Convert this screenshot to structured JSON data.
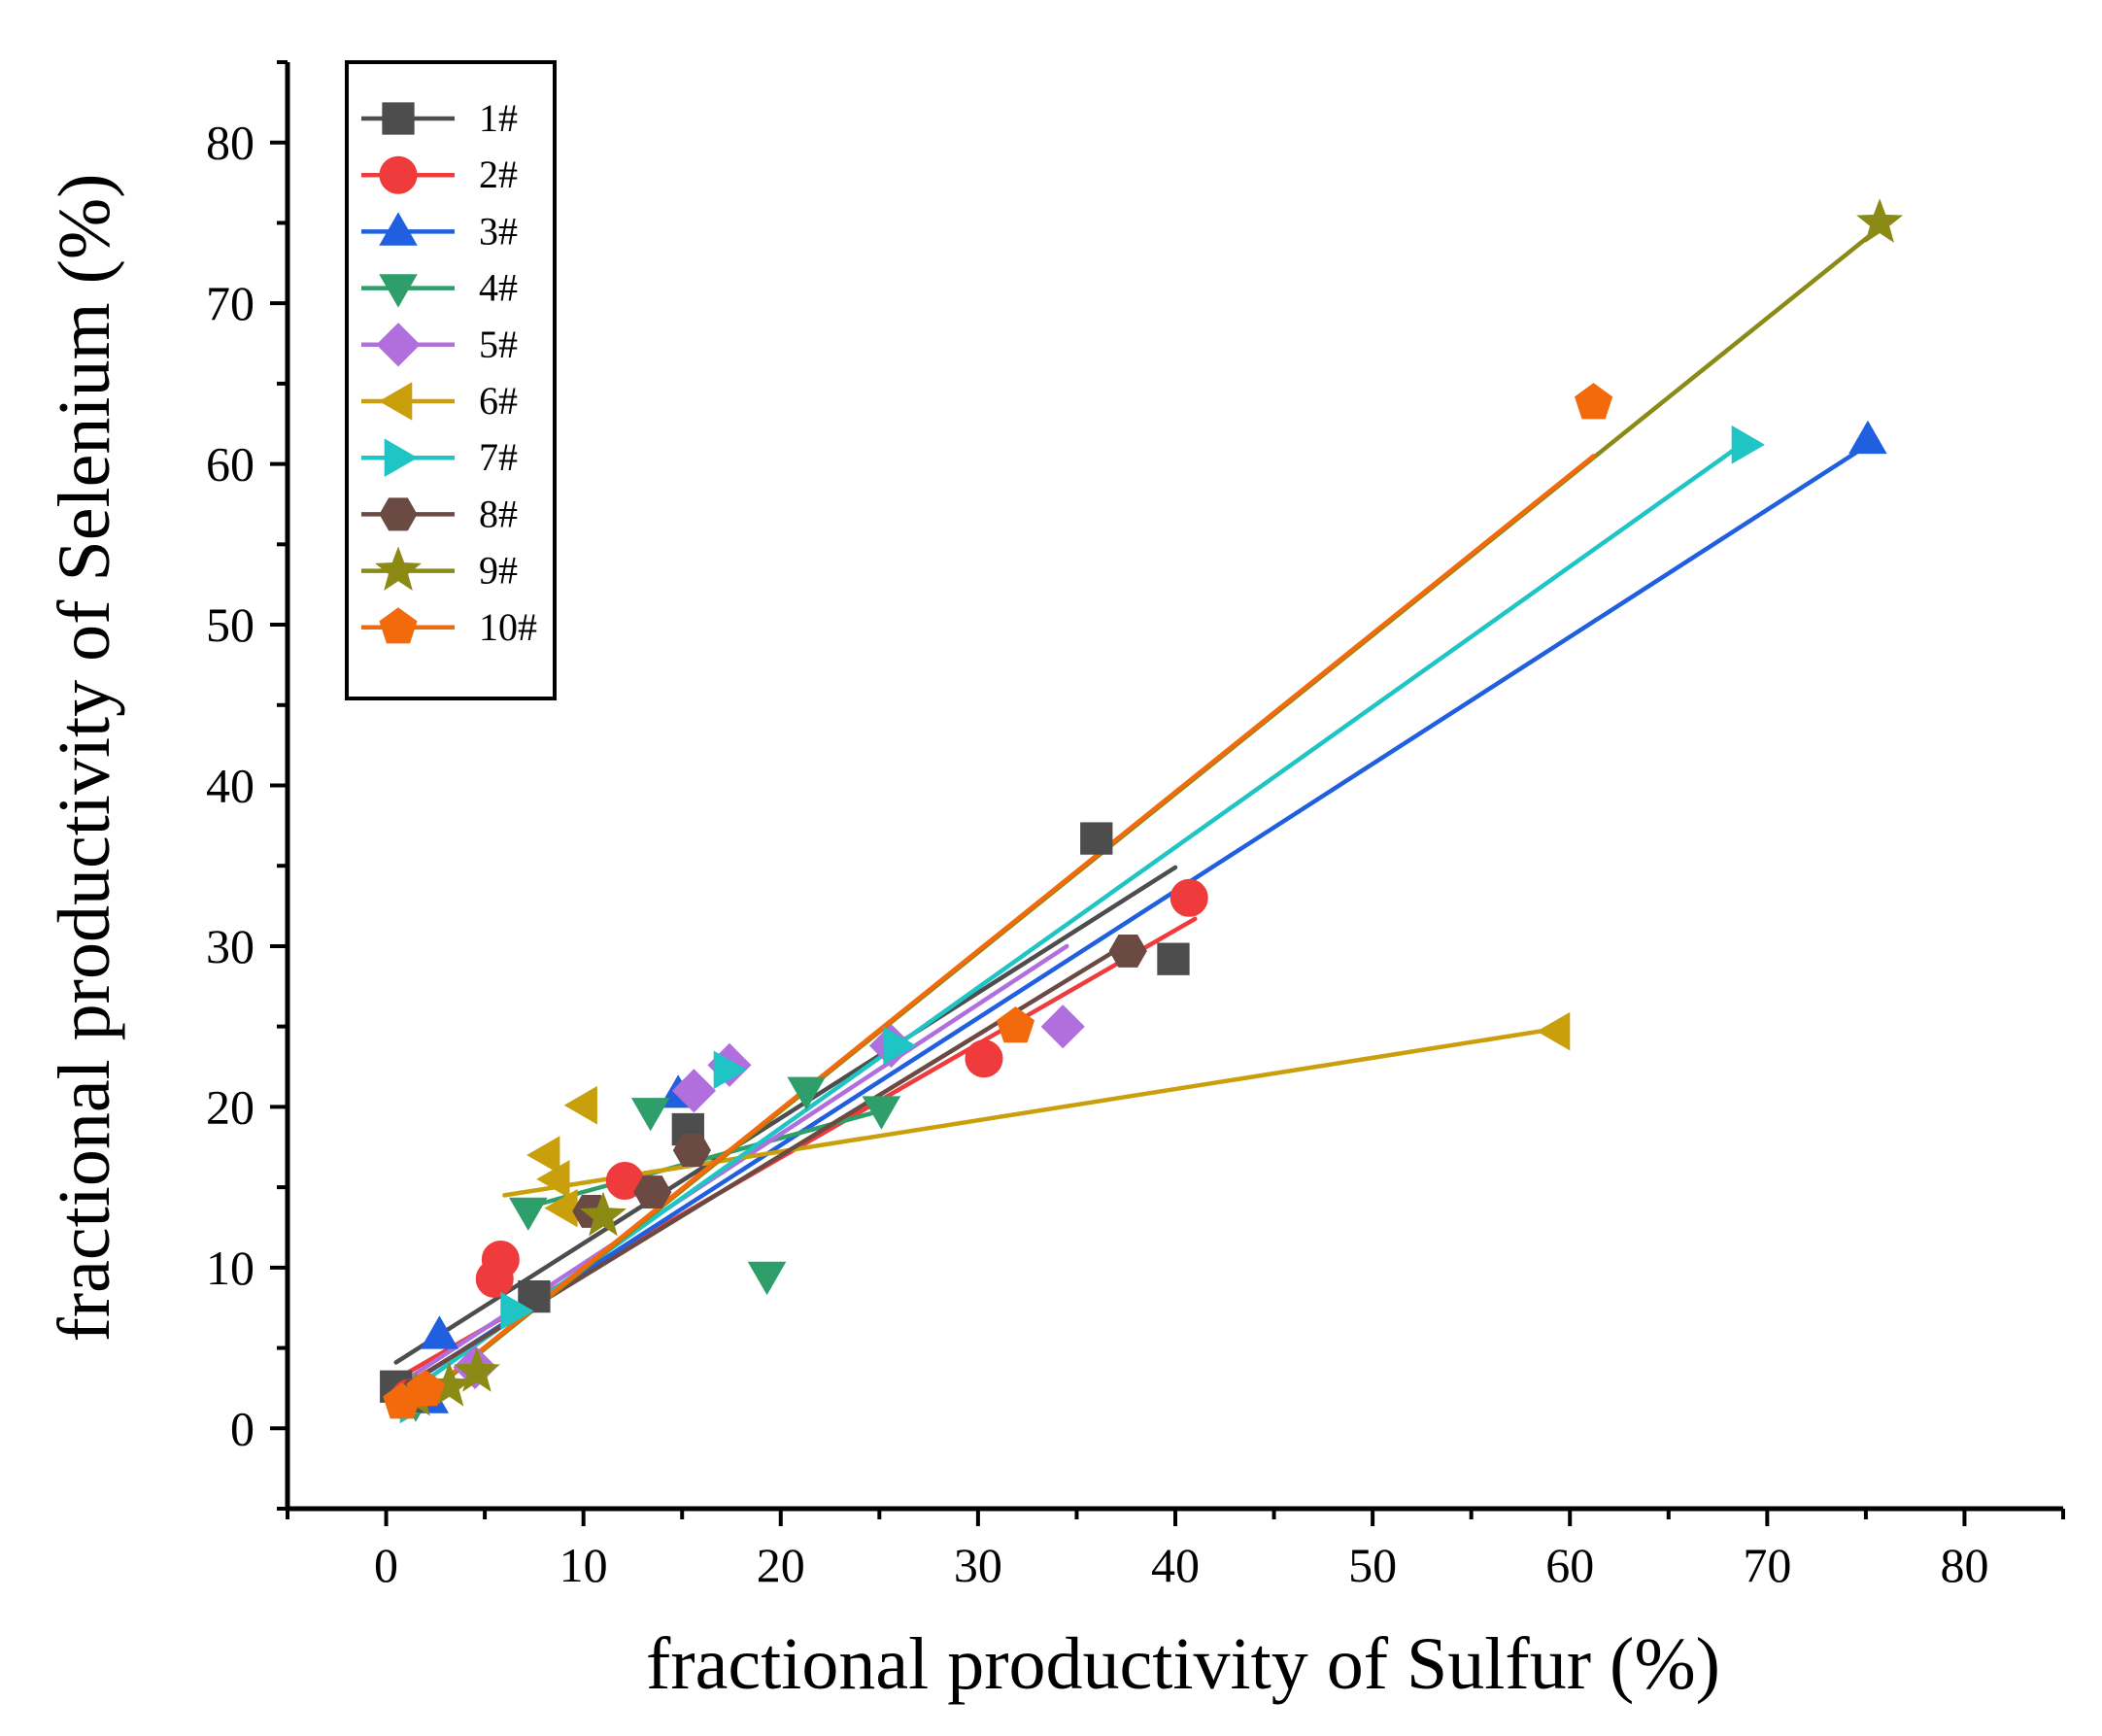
{
  "chart_data": {
    "type": "scatter",
    "title": "",
    "xlabel": "fractional  productivity of  Sulfur (%)",
    "ylabel": "fractional  productivity of  Selenium (%)",
    "xlim": [
      -5,
      85
    ],
    "ylim": [
      -5,
      85
    ],
    "xticks": [
      "0",
      "10",
      "20",
      "30",
      "40",
      "50",
      "60",
      "70",
      "80"
    ],
    "yticks": [
      "0",
      "10",
      "20",
      "30",
      "40",
      "50",
      "60",
      "70",
      "80"
    ],
    "grid": false,
    "legend_position": "top-left",
    "series": [
      {
        "name": "1#",
        "color": "#4d4d4d",
        "marker": "square",
        "points": [
          [
            0.5,
            2.6
          ],
          [
            15.3,
            18.6
          ],
          [
            36.0,
            36.7
          ],
          [
            39.9,
            29.2
          ],
          [
            7.5,
            8.2
          ]
        ],
        "fit": [
          [
            0.5,
            4.1
          ],
          [
            40.0,
            34.9
          ]
        ]
      },
      {
        "name": "2#",
        "color": "#ef3b3b",
        "marker": "circle",
        "points": [
          [
            1.2,
            1.9
          ],
          [
            5.5,
            9.3
          ],
          [
            5.8,
            10.5
          ],
          [
            12.1,
            15.4
          ],
          [
            30.3,
            23.0
          ],
          [
            40.7,
            33.0
          ]
        ],
        "fit": [
          [
            1.0,
            3.4
          ],
          [
            41.0,
            31.7
          ]
        ]
      },
      {
        "name": "3#",
        "color": "#1f5fe0",
        "marker": "triangle-up",
        "points": [
          [
            2.2,
            1.8
          ],
          [
            2.7,
            5.8
          ],
          [
            14.8,
            20.8
          ],
          [
            75.1,
            61.5
          ]
        ],
        "fit": [
          [
            1.0,
            2.6
          ],
          [
            75.5,
            61.5
          ]
        ]
      },
      {
        "name": "4#",
        "color": "#2e9e6b",
        "marker": "triangle-down",
        "points": [
          [
            7.2,
            13.5
          ],
          [
            13.4,
            19.7
          ],
          [
            19.3,
            9.5
          ],
          [
            21.3,
            21.0
          ],
          [
            25.1,
            19.8
          ],
          [
            1.5,
            1.6
          ]
        ],
        "fit": [
          [
            7.0,
            13.7
          ],
          [
            25.2,
            19.8
          ]
        ]
      },
      {
        "name": "5#",
        "color": "#b06fdc",
        "marker": "diamond",
        "points": [
          [
            4.5,
            3.8
          ],
          [
            15.6,
            21.0
          ],
          [
            17.4,
            22.6
          ],
          [
            34.3,
            25.0
          ],
          [
            25.6,
            23.8
          ]
        ],
        "fit": [
          [
            1.0,
            3.0
          ],
          [
            34.5,
            30.0
          ]
        ]
      },
      {
        "name": "6#",
        "color": "#c9a00b",
        "marker": "triangle-left",
        "points": [
          [
            8.1,
            17.0
          ],
          [
            10.0,
            20.1
          ],
          [
            8.6,
            15.5
          ],
          [
            9.0,
            13.7
          ],
          [
            59.3,
            24.7
          ]
        ],
        "fit": [
          [
            6.0,
            14.5
          ],
          [
            59.5,
            24.9
          ]
        ]
      },
      {
        "name": "7#",
        "color": "#1fc4c4",
        "marker": "triangle-right",
        "points": [
          [
            1.4,
            1.5
          ],
          [
            6.5,
            7.3
          ],
          [
            17.3,
            22.3
          ],
          [
            25.9,
            23.8
          ],
          [
            68.9,
            61.2
          ]
        ],
        "fit": [
          [
            1.0,
            2.1
          ],
          [
            68.8,
            61.3
          ]
        ]
      },
      {
        "name": "8#",
        "color": "#6b4a43",
        "marker": "hexagon",
        "points": [
          [
            10.4,
            13.5
          ],
          [
            15.5,
            17.3
          ],
          [
            37.6,
            29.7
          ],
          [
            13.5,
            14.7
          ],
          [
            1.5,
            2.0
          ]
        ],
        "fit": [
          [
            1.0,
            2.7
          ],
          [
            38.0,
            30.5
          ]
        ]
      },
      {
        "name": "9#",
        "color": "#8a8a14",
        "marker": "star",
        "points": [
          [
            1.5,
            2.0
          ],
          [
            3.2,
            2.6
          ],
          [
            4.6,
            3.5
          ],
          [
            11.0,
            13.2
          ],
          [
            75.7,
            75.0
          ]
        ],
        "fit": [
          [
            1.0,
            1.0
          ],
          [
            76.0,
            75.0
          ]
        ]
      },
      {
        "name": "10#",
        "color": "#f26a0b",
        "marker": "pentagon",
        "points": [
          [
            0.8,
            1.6
          ],
          [
            2.0,
            2.4
          ],
          [
            31.9,
            25.0
          ],
          [
            61.2,
            63.8
          ]
        ],
        "fit": [
          [
            1.0,
            1.1
          ],
          [
            61.2,
            60.5
          ]
        ]
      }
    ]
  }
}
